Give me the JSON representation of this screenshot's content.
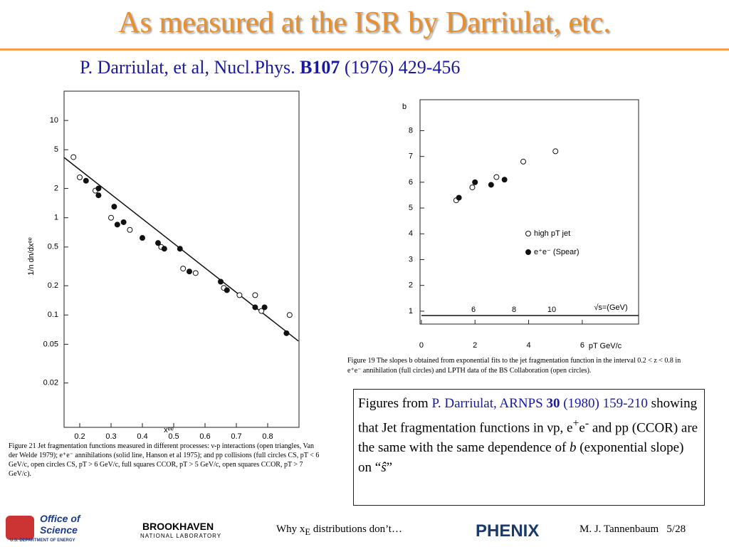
{
  "header": {
    "title": "As measured at the ISR by Darriulat, etc.",
    "ref": {
      "authors": "P. Darriulat, et al,  Nucl.Phys.",
      "volume": "B107",
      "rest": "(1976) 429-456"
    }
  },
  "chart_data": [
    {
      "type": "scatter",
      "x_label": "xᵉᵉ",
      "y_label": "1/n  dn/dxᵉᵉ",
      "log_y": true,
      "xlim": [
        0.15,
        0.9
      ],
      "ylim": [
        0.007,
        20
      ],
      "xticks": [
        0.2,
        0.3,
        0.4,
        0.5,
        0.6,
        0.7,
        0.8
      ],
      "yticks": [
        10,
        5,
        2,
        1,
        0.5,
        0.2,
        0.1,
        0.05,
        0.02
      ],
      "series": [
        {
          "color": "#111111",
          "marker": "open",
          "x": [
            0.18,
            0.2,
            0.25,
            0.3,
            0.36,
            0.46,
            0.53,
            0.57,
            0.66,
            0.71,
            0.76,
            0.78,
            0.87
          ],
          "values": [
            4.2,
            2.6,
            1.9,
            1.0,
            0.75,
            0.5,
            0.3,
            0.27,
            0.19,
            0.16,
            0.16,
            0.11,
            0.1
          ]
        },
        {
          "color": "#111111",
          "marker": "filled",
          "x": [
            0.22,
            0.26,
            0.26,
            0.31,
            0.32,
            0.34,
            0.4,
            0.45,
            0.47,
            0.52,
            0.55,
            0.65,
            0.67,
            0.76,
            0.79,
            0.86
          ],
          "values": [
            2.4,
            2.0,
            1.7,
            1.3,
            0.85,
            0.9,
            0.62,
            0.55,
            0.48,
            0.48,
            0.28,
            0.22,
            0.18,
            0.12,
            0.12,
            0.065
          ]
        }
      ],
      "fit": {
        "color": "#111111",
        "x": [
          0.15,
          0.898
        ],
        "values": [
          4.16,
          0.054
        ]
      },
      "caption": "Figure 21   Jet fragmentation functions measured in different processes: ν-p interactions (open triangles, Van der Welde 1979); e⁺e⁻ annihilations (solid line, Hanson et al 1975); and pp collisions (full circles CS, pT < 6 GeV/c, open circles CS, pT > 6 GeV/c, full squares CCOR, pT > 5 GeV/c, open squares CCOR, pT > 7 GeV/c)."
    },
    {
      "type": "scatter",
      "x_label": "pT GeV/c",
      "y_label": "b",
      "xlim": [
        -0.05,
        8.1
      ],
      "ylim": [
        0.5,
        9.2
      ],
      "xticks": [
        0,
        2,
        4,
        6
      ],
      "yticks": [
        1,
        2,
        3,
        4,
        5,
        6,
        7,
        8
      ],
      "series": [
        {
          "name": "high pT jet",
          "color": "#111111",
          "marker": "open",
          "x": [
            1.3,
            1.9,
            2.8,
            3.8,
            5.0
          ],
          "values": [
            5.3,
            5.8,
            6.2,
            6.8,
            7.2
          ]
        },
        {
          "name": "e⁺e⁻ (Spear)",
          "color": "#111111",
          "marker": "filled",
          "x": [
            1.4,
            2.0,
            2.6,
            3.1
          ],
          "values": [
            5.4,
            6.0,
            5.9,
            6.1
          ]
        }
      ],
      "annotations": [
        "6",
        "8",
        "10",
        "√s=(GeV)"
      ],
      "caption": "Figure 19   The slopes b obtained from exponential fits to the jet fragmentation function in the interval 0.2 < z < 0.8 in e⁺e⁻ annihilation (full circles) and LPTH data of the BS Collaboration (open circles)."
    }
  ],
  "textbox": [
    "Figures from ",
    "P. Darriulat, ARNPS ",
    "30",
    " (1980) 159-210",
    " showing that Jet fragmentation functions in νp, e",
    "+",
    "e",
    "-",
    " and pp (CCOR) are the same with the same dependence of ",
    "b",
    " (exponential slope) on “",
    "ŝ",
    "”"
  ],
  "footer": {
    "logo1": "Office of",
    "logo1b": "Science",
    "logo1c": "U.S. DEPARTMENT OF ENERGY",
    "logo2": "BROOKHAVEN",
    "logo2b": "NATIONAL LABORATORY",
    "center": [
      "Why x",
      "E",
      " distributions don’t…"
    ],
    "logo3": "PHENIX",
    "author": "M. J. Tannenbaum   5/28"
  }
}
